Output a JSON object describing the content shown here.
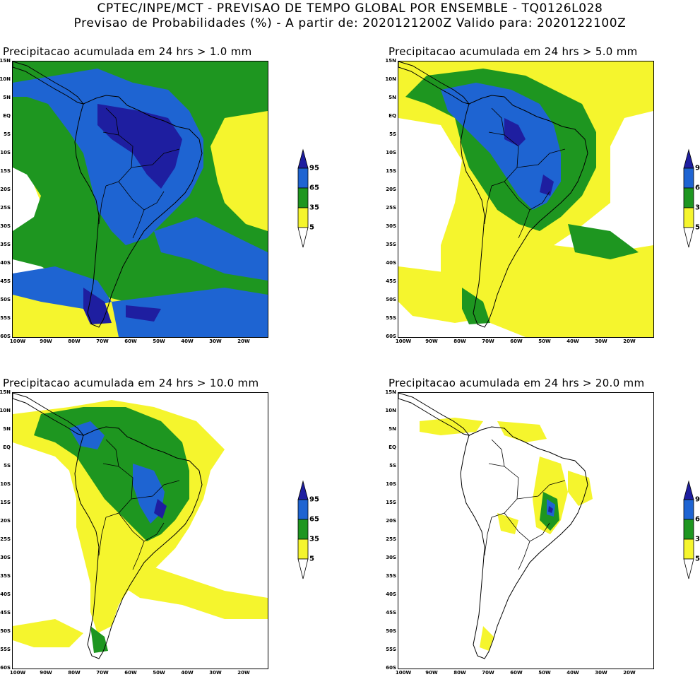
{
  "header": {
    "line1": "CPTEC/INPE/MCT - PREVISAO DE TEMPO GLOBAL POR ENSEMBLE - TQ0126L028",
    "line2": "Previsao de Probabilidades (%) -  A partir de: 2020121200Z  Valido para: 2020122100Z"
  },
  "lat_labels": [
    "15N",
    "10N",
    "5N",
    "EQ",
    "5S",
    "10S",
    "15S",
    "20S",
    "25S",
    "30S",
    "35S",
    "40S",
    "45S",
    "50S",
    "55S",
    "60S"
  ],
  "lon_labels": [
    "100W",
    "90W",
    "80W",
    "70W",
    "60W",
    "50W",
    "40W",
    "30W",
    "20W"
  ],
  "legend": {
    "labels": [
      "95",
      "65",
      "35",
      "5"
    ],
    "colors": {
      "c95": "#1e1ea0",
      "c65": "#1e64d2",
      "c35": "#1e9620",
      "c5": "#f5f52d"
    }
  },
  "panels": [
    {
      "title": "Precipitacao acumulada em 24 hrs > 1.0 mm"
    },
    {
      "title": "Precipitacao acumulada em 24 hrs > 5.0 mm"
    },
    {
      "title": "Precipitacao acumulada em 24 hrs > 10.0 mm"
    },
    {
      "title": "Precipitacao acumulada em 24 hrs > 20.0 mm"
    }
  ]
}
